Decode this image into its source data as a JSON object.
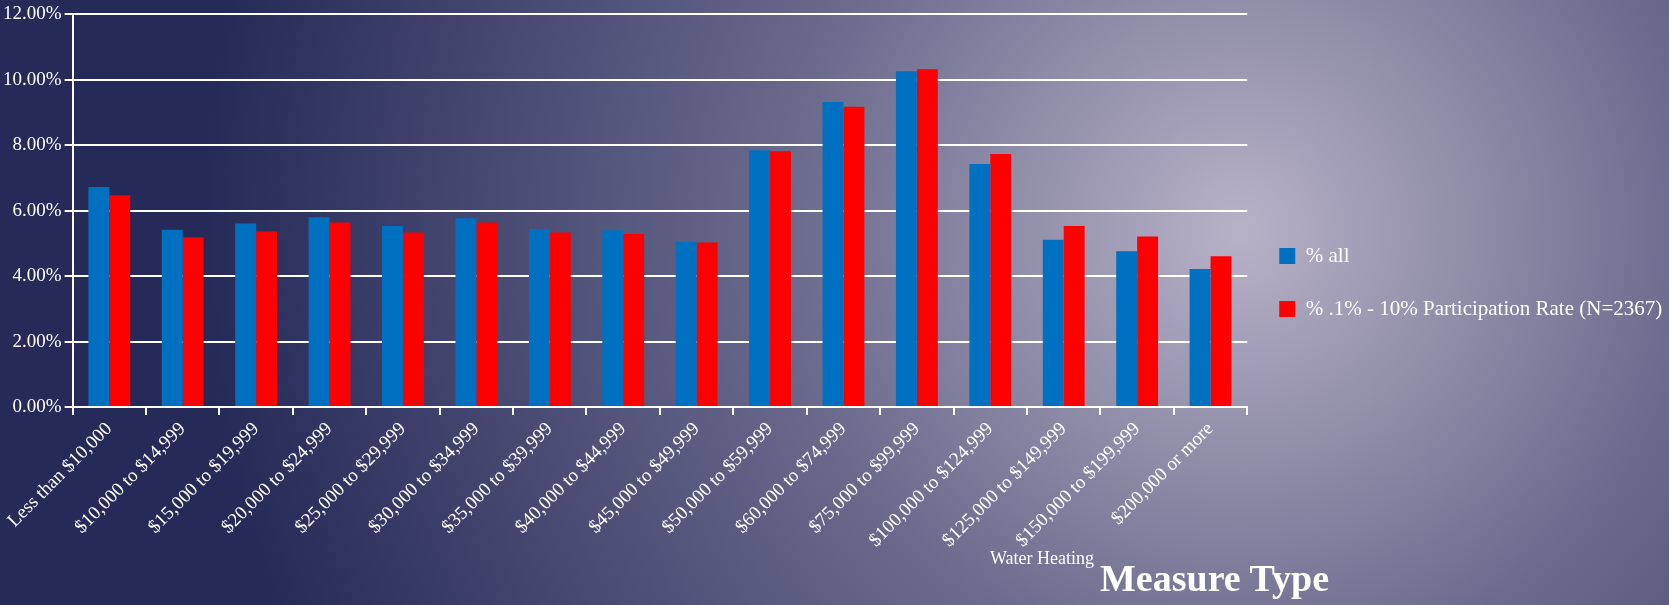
{
  "chart_data": {
    "type": "bar",
    "categories": [
      "Less than $10,000",
      "$10,000 to $14,999",
      "$15,000 to $19,999",
      "$20,000 to $24,999",
      "$25,000 to $29,999",
      "$30,000 to $34,999",
      "$35,000 to $39,999",
      "$40,000 to $44,999",
      "$45,000 to $49,999",
      "$50,000 to $59,999",
      "$60,000 to $74,999",
      "$75,000 to $99,999",
      "$100,000 to $124,999",
      "$125,000 to $149,999",
      "$150,000 to $199,999",
      "$200,000 or more"
    ],
    "series": [
      {
        "name": "% all",
        "color": "#0070c0",
        "values": [
          6.72,
          5.42,
          5.61,
          5.8,
          5.53,
          5.77,
          5.44,
          5.4,
          5.05,
          7.85,
          9.32,
          10.26,
          7.43,
          5.11,
          4.76,
          4.22
        ]
      },
      {
        "name": "% .1% - 10% Participation Rate (N=2367)",
        "color": "#ff0000",
        "values": [
          6.47,
          5.19,
          5.36,
          5.64,
          5.33,
          5.64,
          5.33,
          5.29,
          5.03,
          7.82,
          9.18,
          10.32,
          7.73,
          5.53,
          5.21,
          4.61
        ]
      }
    ],
    "ylim": [
      0,
      12
    ],
    "yticks": [
      {
        "value": 0,
        "label": "0.00%"
      },
      {
        "value": 2,
        "label": "2.00%"
      },
      {
        "value": 4,
        "label": "4.00%"
      },
      {
        "value": 6,
        "label": "6.00%"
      },
      {
        "value": 8,
        "label": "8.00%"
      },
      {
        "value": 10,
        "label": "10.00%"
      },
      {
        "value": 12,
        "label": "12.00%"
      }
    ],
    "grid": "y",
    "legend": "right",
    "annotations": [
      "Water Heating",
      "Measure Type"
    ]
  }
}
